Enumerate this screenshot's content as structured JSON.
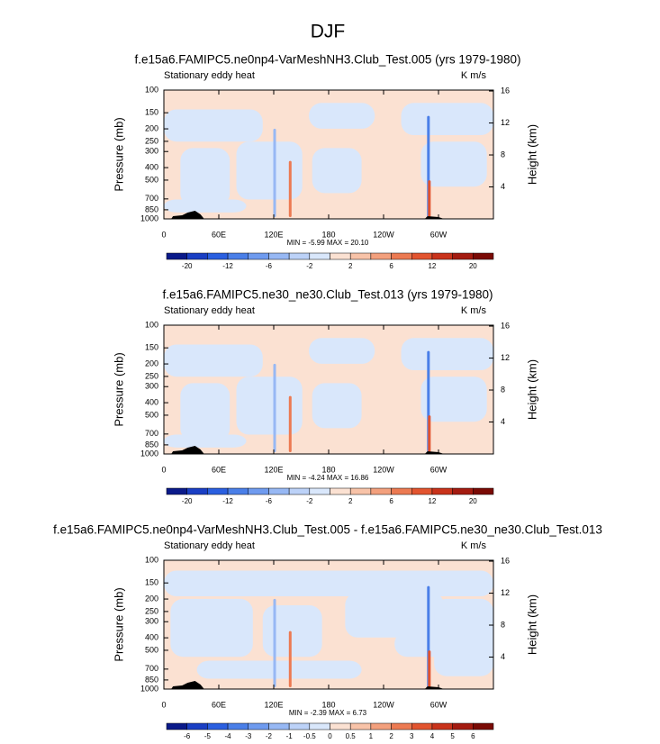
{
  "title": "DJF",
  "chart_data": [
    {
      "type": "contour",
      "title": "f.e15a6.FAMIPC5.ne0np4-VarMeshNH3.Club_Test.005 (yrs 1979-1980)",
      "left_label": "Stationary eddy heat",
      "units_label": "K m/s",
      "ylabel": "Pressure (mb)",
      "y2label": "Height (km)",
      "xlim": [
        0,
        360
      ],
      "xticks": [
        0,
        {
          "value": 60,
          "label": "60E"
        },
        {
          "value": 120,
          "label": "120E"
        },
        180,
        {
          "value": 240,
          "label": "120W"
        },
        {
          "value": 300,
          "label": "60W"
        }
      ],
      "ylim": [
        1000,
        100
      ],
      "ylog": true,
      "yticks": [
        100,
        150,
        200,
        250,
        300,
        400,
        500,
        700,
        850,
        1000
      ],
      "y2ticks": [
        4,
        8,
        12,
        16
      ],
      "stats": "MIN =  -5.99   MAX =  20.10",
      "colorbar_ticks": [
        -20,
        -12,
        -6,
        -2,
        2,
        6,
        12,
        20
      ],
      "colors": [
        "#0a1a8a",
        "#1a3fc4",
        "#2a5fe0",
        "#4a7fe8",
        "#6f9bef",
        "#97b8f4",
        "#bcd2f8",
        "#d9e7fb",
        "#fbe1d2",
        "#f8c3a8",
        "#f3a07d",
        "#ec7a52",
        "#e2542f",
        "#c9331b",
        "#a41b10",
        "#7a0a05"
      ]
    },
    {
      "type": "contour",
      "title": "f.e15a6.FAMIPC5.ne30_ne30.Club_Test.013 (yrs 1979-1980)",
      "left_label": "Stationary eddy heat",
      "units_label": "K m/s",
      "ylabel": "Pressure (mb)",
      "y2label": "Height (km)",
      "xlim": [
        0,
        360
      ],
      "xticks": [
        0,
        {
          "value": 60,
          "label": "60E"
        },
        {
          "value": 120,
          "label": "120E"
        },
        180,
        {
          "value": 240,
          "label": "120W"
        },
        {
          "value": 300,
          "label": "60W"
        }
      ],
      "ylim": [
        1000,
        100
      ],
      "ylog": true,
      "yticks": [
        100,
        150,
        200,
        250,
        300,
        400,
        500,
        700,
        850,
        1000
      ],
      "y2ticks": [
        4,
        8,
        12,
        16
      ],
      "stats": "MIN =  -4.24   MAX =  16.86",
      "colorbar_ticks": [
        -20,
        -12,
        -6,
        -2,
        2,
        6,
        12,
        20
      ],
      "colors": [
        "#0a1a8a",
        "#1a3fc4",
        "#2a5fe0",
        "#4a7fe8",
        "#6f9bef",
        "#97b8f4",
        "#bcd2f8",
        "#d9e7fb",
        "#fbe1d2",
        "#f8c3a8",
        "#f3a07d",
        "#ec7a52",
        "#e2542f",
        "#c9331b",
        "#a41b10",
        "#7a0a05"
      ]
    },
    {
      "type": "contour",
      "title": "f.e15a6.FAMIPC5.ne0np4-VarMeshNH3.Club_Test.005 - f.e15a6.FAMIPC5.ne30_ne30.Club_Test.013",
      "left_label": "Stationary eddy heat",
      "units_label": "K m/s",
      "ylabel": "Pressure (mb)",
      "y2label": "Height (km)",
      "xlim": [
        0,
        360
      ],
      "xticks": [
        0,
        {
          "value": 60,
          "label": "60E"
        },
        {
          "value": 120,
          "label": "120E"
        },
        180,
        {
          "value": 240,
          "label": "120W"
        },
        {
          "value": 300,
          "label": "60W"
        }
      ],
      "ylim": [
        1000,
        100
      ],
      "ylog": true,
      "yticks": [
        100,
        150,
        200,
        250,
        300,
        400,
        500,
        700,
        850,
        1000
      ],
      "y2ticks": [
        4,
        8,
        12,
        16
      ],
      "stats": "MIN =  -2.39   MAX =  6.73",
      "colorbar_ticks": [
        -6,
        -5,
        -4,
        -3,
        -2,
        -1,
        -0.5,
        0,
        0.5,
        1,
        2,
        3,
        4,
        5,
        6
      ],
      "colors": [
        "#0a1a8a",
        "#1a3fc4",
        "#2a5fe0",
        "#4a7fe8",
        "#6f9bef",
        "#97b8f4",
        "#bcd2f8",
        "#d9e7fb",
        "#fbe1d2",
        "#f8c3a8",
        "#f3a07d",
        "#ec7a52",
        "#e2542f",
        "#c9331b",
        "#a41b10",
        "#7a0a05"
      ]
    }
  ]
}
